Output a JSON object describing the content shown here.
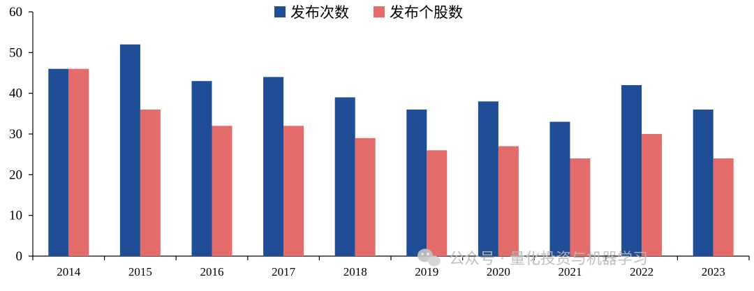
{
  "chart_data": {
    "type": "bar",
    "title": "",
    "xlabel": "",
    "ylabel": "",
    "categories": [
      "2014",
      "2015",
      "2016",
      "2017",
      "2018",
      "2019",
      "2020",
      "2021",
      "2022",
      "2023"
    ],
    "series": [
      {
        "name": "发布次数",
        "color": "#1f4e96",
        "values": [
          46,
          52,
          43,
          44,
          39,
          36,
          38,
          33,
          42,
          36
        ]
      },
      {
        "name": "发布个股数",
        "color": "#e46c6a",
        "values": [
          46,
          36,
          32,
          32,
          29,
          26,
          27,
          24,
          30,
          24
        ]
      }
    ],
    "ylim": [
      0,
      60
    ],
    "yticks": [
      0,
      10,
      20,
      30,
      40,
      50,
      60
    ],
    "grid": false,
    "legend_position": "top-center"
  },
  "watermark": {
    "text": "公众号 · 量化投资与机器学习",
    "icon": "wechat-icon"
  }
}
